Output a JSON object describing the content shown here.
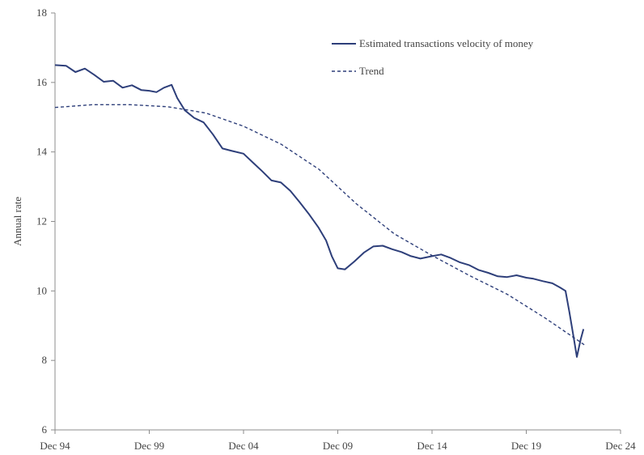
{
  "chart_data": {
    "type": "line",
    "title": "",
    "xlabel": "",
    "ylabel": "Annual rate",
    "x_ticks": [
      "Dec 94",
      "Dec 99",
      "Dec 04",
      "Dec 09",
      "Dec 14",
      "Dec 19",
      "Dec 24"
    ],
    "xlim": [
      1994.917,
      2024.917
    ],
    "ylim": [
      6,
      18
    ],
    "y_ticks": [
      6,
      8,
      10,
      12,
      14,
      16,
      18
    ],
    "grid": false,
    "legend_position": "top-right",
    "series": [
      {
        "name": "Estimated transactions velocity of money",
        "style": "solid",
        "color": "#2e3f7a",
        "points": [
          [
            1994.917,
            16.5
          ],
          [
            1995.5,
            16.48
          ],
          [
            1996.0,
            16.3
          ],
          [
            1996.5,
            16.4
          ],
          [
            1997.0,
            16.22
          ],
          [
            1997.5,
            16.02
          ],
          [
            1998.0,
            16.05
          ],
          [
            1998.5,
            15.85
          ],
          [
            1999.0,
            15.92
          ],
          [
            1999.5,
            15.78
          ],
          [
            1999.917,
            15.76
          ],
          [
            2000.3,
            15.72
          ],
          [
            2000.7,
            15.85
          ],
          [
            2001.1,
            15.93
          ],
          [
            2001.4,
            15.55
          ],
          [
            2001.8,
            15.2
          ],
          [
            2002.3,
            14.98
          ],
          [
            2002.8,
            14.85
          ],
          [
            2003.3,
            14.5
          ],
          [
            2003.8,
            14.1
          ],
          [
            2004.3,
            14.03
          ],
          [
            2004.917,
            13.95
          ],
          [
            2005.4,
            13.7
          ],
          [
            2005.9,
            13.45
          ],
          [
            2006.4,
            13.18
          ],
          [
            2006.9,
            13.12
          ],
          [
            2007.4,
            12.88
          ],
          [
            2007.9,
            12.55
          ],
          [
            2008.4,
            12.2
          ],
          [
            2008.9,
            11.82
          ],
          [
            2009.3,
            11.45
          ],
          [
            2009.6,
            11.0
          ],
          [
            2009.917,
            10.65
          ],
          [
            2010.3,
            10.62
          ],
          [
            2010.8,
            10.85
          ],
          [
            2011.3,
            11.1
          ],
          [
            2011.8,
            11.28
          ],
          [
            2012.3,
            11.3
          ],
          [
            2012.8,
            11.2
          ],
          [
            2013.3,
            11.12
          ],
          [
            2013.8,
            11.0
          ],
          [
            2014.3,
            10.93
          ],
          [
            2014.917,
            11.0
          ],
          [
            2015.4,
            11.05
          ],
          [
            2015.9,
            10.95
          ],
          [
            2016.4,
            10.82
          ],
          [
            2016.9,
            10.74
          ],
          [
            2017.4,
            10.6
          ],
          [
            2017.9,
            10.52
          ],
          [
            2018.4,
            10.42
          ],
          [
            2018.9,
            10.4
          ],
          [
            2019.4,
            10.45
          ],
          [
            2019.917,
            10.38
          ],
          [
            2020.3,
            10.35
          ],
          [
            2020.8,
            10.28
          ],
          [
            2021.3,
            10.22
          ],
          [
            2021.7,
            10.1
          ],
          [
            2022.0,
            10.0
          ],
          [
            2022.2,
            9.4
          ],
          [
            2022.45,
            8.6
          ],
          [
            2022.6,
            8.1
          ],
          [
            2022.8,
            8.6
          ],
          [
            2022.95,
            8.9
          ]
        ]
      },
      {
        "name": "Trend",
        "style": "dashed",
        "color": "#2e3f7a",
        "points": [
          [
            1994.917,
            15.28
          ],
          [
            1996.917,
            15.36
          ],
          [
            1998.917,
            15.36
          ],
          [
            2000.917,
            15.3
          ],
          [
            2002.917,
            15.12
          ],
          [
            2004.917,
            14.74
          ],
          [
            2006.917,
            14.22
          ],
          [
            2008.917,
            13.5
          ],
          [
            2010.917,
            12.5
          ],
          [
            2012.917,
            11.64
          ],
          [
            2014.917,
            11.02
          ],
          [
            2016.917,
            10.44
          ],
          [
            2018.917,
            9.9
          ],
          [
            2020.917,
            9.22
          ],
          [
            2023.0,
            8.45
          ]
        ]
      }
    ]
  }
}
